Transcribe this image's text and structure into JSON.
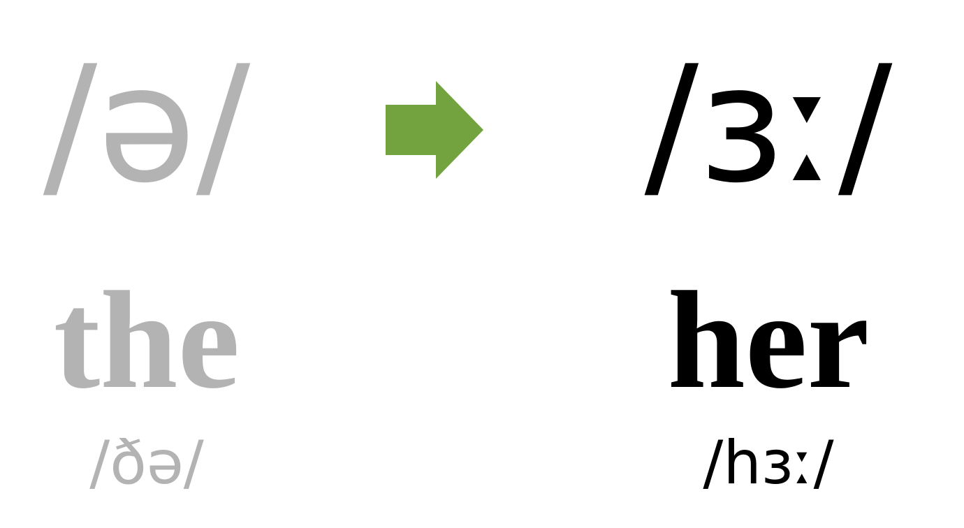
{
  "before": {
    "symbol": "/ə/",
    "word": "the",
    "ipa": "/ðə/"
  },
  "after": {
    "symbol": "/ɜː/",
    "word": "her",
    "ipa": "/hɜː/"
  },
  "colors": {
    "muted": "#b3b3b3",
    "emphasis": "#000000",
    "arrow": "#72a33f"
  },
  "arrow_icon": "right-arrow-icon"
}
